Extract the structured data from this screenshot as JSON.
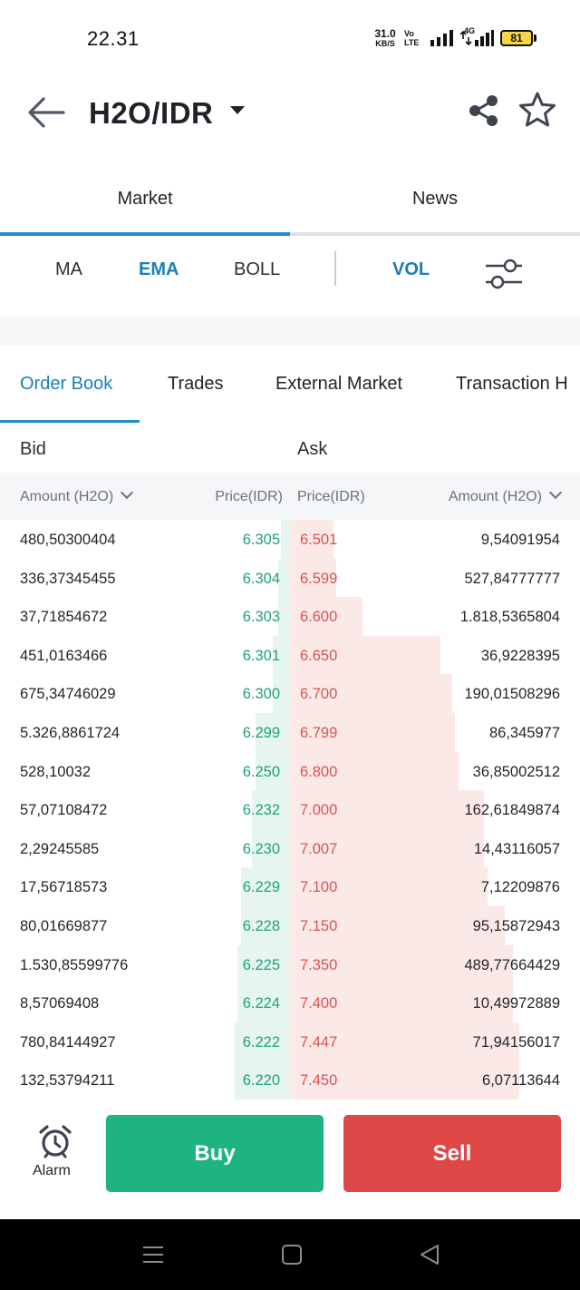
{
  "status_bar": {
    "time": "22.31",
    "net_speed": "31.0",
    "net_unit": "KB/S",
    "volte": "Vo LTE",
    "network": "4G",
    "battery": "81"
  },
  "header": {
    "title": "H2O/IDR",
    "back_icon": "arrow-left-icon",
    "share_icon": "share-icon",
    "favorite_icon": "star-outline-icon"
  },
  "main_tabs": [
    {
      "label": "Market",
      "active": true
    },
    {
      "label": "News",
      "active": false
    }
  ],
  "indicators": [
    {
      "label": "MA",
      "active": false
    },
    {
      "label": "EMA",
      "active": true
    },
    {
      "label": "BOLL",
      "active": false
    },
    {
      "label": "VOL",
      "active": true
    }
  ],
  "order_tabs": [
    {
      "label": "Order Book",
      "active": true
    },
    {
      "label": "Trades",
      "active": false
    },
    {
      "label": "External Market",
      "active": false
    },
    {
      "label": "Transaction H",
      "active": false
    }
  ],
  "book": {
    "bid_label": "Bid",
    "ask_label": "Ask",
    "headers": {
      "bid_amount": "Amount (H2O)",
      "bid_price": "Price(IDR)",
      "ask_price": "Price(IDR)",
      "ask_amount": "Amount (H2O)"
    },
    "rows": [
      {
        "bid_amount": "480,50300404",
        "bid_price": "6.305",
        "ask_price": "6.501",
        "ask_amount": "9,54091954",
        "bid_depth": 0.03,
        "ask_depth": 0.15
      },
      {
        "bid_amount": "336,37345455",
        "bid_price": "6.304",
        "ask_price": "6.599",
        "ask_amount": "527,84777777",
        "bid_depth": 0.04,
        "ask_depth": 0.16
      },
      {
        "bid_amount": "37,71854672",
        "bid_price": "6.303",
        "ask_price": "6.600",
        "ask_amount": "1.818,5365804",
        "bid_depth": 0.04,
        "ask_depth": 0.25
      },
      {
        "bid_amount": "451,0163466",
        "bid_price": "6.301",
        "ask_price": "6.650",
        "ask_amount": "36,9228395",
        "bid_depth": 0.06,
        "ask_depth": 0.52
      },
      {
        "bid_amount": "675,34746029",
        "bid_price": "6.300",
        "ask_price": "6.700",
        "ask_amount": "190,01508296",
        "bid_depth": 0.06,
        "ask_depth": 0.56
      },
      {
        "bid_amount": "5.326,8861724",
        "bid_price": "6.299",
        "ask_price": "6.799",
        "ask_amount": "86,345977",
        "bid_depth": 0.12,
        "ask_depth": 0.57
      },
      {
        "bid_amount": "528,10032",
        "bid_price": "6.250",
        "ask_price": "6.800",
        "ask_amount": "36,85002512",
        "bid_depth": 0.12,
        "ask_depth": 0.58
      },
      {
        "bid_amount": "57,07108472",
        "bid_price": "6.232",
        "ask_price": "7.000",
        "ask_amount": "162,61849874",
        "bid_depth": 0.13,
        "ask_depth": 0.67
      },
      {
        "bid_amount": "2,29245585",
        "bid_price": "6.230",
        "ask_price": "7.007",
        "ask_amount": "14,43116057",
        "bid_depth": 0.13,
        "ask_depth": 0.67
      },
      {
        "bid_amount": "17,56718573",
        "bid_price": "6.229",
        "ask_price": "7.100",
        "ask_amount": "7,12209876",
        "bid_depth": 0.17,
        "ask_depth": 0.68
      },
      {
        "bid_amount": "80,01669877",
        "bid_price": "6.228",
        "ask_price": "7.150",
        "ask_amount": "95,15872943",
        "bid_depth": 0.17,
        "ask_depth": 0.74
      },
      {
        "bid_amount": "1.530,85599776",
        "bid_price": "6.225",
        "ask_price": "7.350",
        "ask_amount": "489,77664429",
        "bid_depth": 0.18,
        "ask_depth": 0.77
      },
      {
        "bid_amount": "8,57069408",
        "bid_price": "6.224",
        "ask_price": "7.400",
        "ask_amount": "10,49972889",
        "bid_depth": 0.18,
        "ask_depth": 0.77
      },
      {
        "bid_amount": "780,84144927",
        "bid_price": "6.222",
        "ask_price": "7.447",
        "ask_amount": "71,94156017",
        "bid_depth": 0.19,
        "ask_depth": 0.79
      },
      {
        "bid_amount": "132,53794211",
        "bid_price": "6.220",
        "ask_price": "7.450",
        "ask_amount": "6,07113644",
        "bid_depth": 0.19,
        "ask_depth": 0.79
      }
    ]
  },
  "actions": {
    "alarm_label": "Alarm",
    "alarm_icon": "alarm-clock-icon",
    "buy_label": "Buy",
    "sell_label": "Sell",
    "buy_color": "#1db383",
    "sell_color": "#e04848"
  },
  "system_nav": [
    "menu-icon",
    "home-icon",
    "back-triangle-icon"
  ]
}
